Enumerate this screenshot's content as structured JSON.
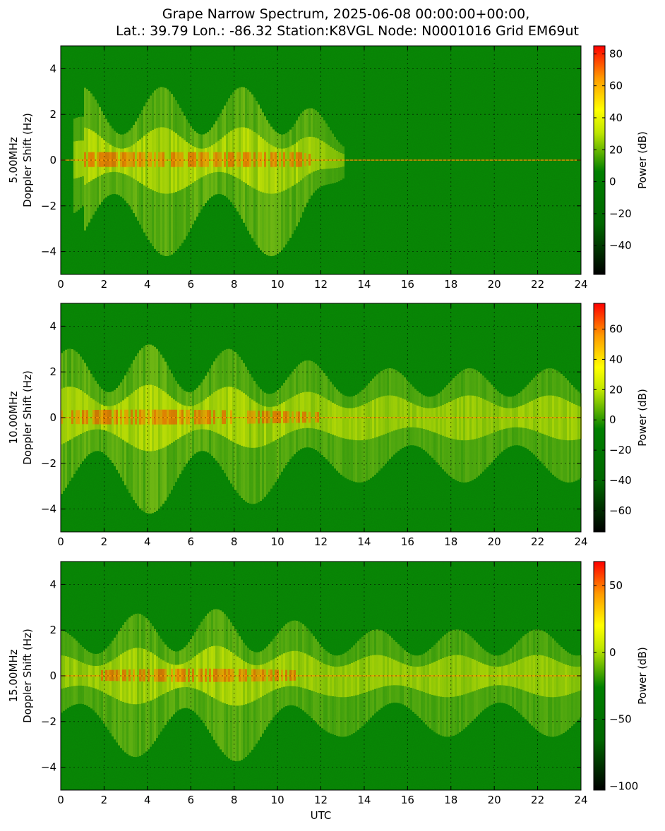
{
  "title_lines": [
    "Grape Narrow Spectrum, 2025-06-08 00:00:00+00:00,",
    "Lat.: 39.79 Lon.: -86.32 Station:K8VGL Node: N0001016 Grid EM69ut"
  ],
  "colors": {
    "colormap": [
      "#000000",
      "#006600",
      "#008000",
      "#bfe600",
      "#ffff00",
      "#ff9900",
      "#ff0000"
    ],
    "axes_frame": "#000000",
    "grid": "#000000"
  },
  "chart_data": [
    {
      "type": "heatmap",
      "band_label": "5.00MHz",
      "ylabel": "5.00MHz\nDoppler Shift (Hz)",
      "ylabel_lines": [
        "5.00MHz",
        "Doppler Shift (Hz)"
      ],
      "xlabel": "",
      "xlim": [
        0,
        24
      ],
      "ylim": [
        -5,
        5
      ],
      "x_ticks": [
        0,
        2,
        4,
        6,
        8,
        10,
        12,
        14,
        16,
        18,
        20,
        22,
        24
      ],
      "y_ticks": [
        -4,
        -2,
        0,
        2,
        4
      ],
      "grid": true,
      "colorbar": {
        "label": "Power (dB)",
        "vmin": -58,
        "vmax": 85,
        "ticks": [
          -40,
          -20,
          0,
          20,
          40,
          60,
          80
        ]
      },
      "signal_active_hours": [
        0.5,
        13
      ],
      "carrier_hz": 0
    },
    {
      "type": "heatmap",
      "band_label": "10.00MHz",
      "ylabel": "10.00MHz\nDoppler Shift (Hz)",
      "ylabel_lines": [
        "10.00MHz",
        "Doppler Shift (Hz)"
      ],
      "xlabel": "",
      "xlim": [
        0,
        24
      ],
      "ylim": [
        -5,
        5
      ],
      "x_ticks": [
        0,
        2,
        4,
        6,
        8,
        10,
        12,
        14,
        16,
        18,
        20,
        22,
        24
      ],
      "y_ticks": [
        -4,
        -2,
        0,
        2,
        4
      ],
      "grid": true,
      "colorbar": {
        "label": "Power (dB)",
        "vmin": -74,
        "vmax": 77,
        "ticks": [
          -60,
          -40,
          -20,
          0,
          20,
          40,
          60
        ]
      },
      "signal_active_hours": [
        0,
        24
      ],
      "carrier_hz": 0
    },
    {
      "type": "heatmap",
      "band_label": "15.00MHz",
      "ylabel": "15.00MHz\nDoppler Shift (Hz)",
      "ylabel_lines": [
        "15.00MHz",
        "Doppler Shift (Hz)"
      ],
      "xlabel": "UTC",
      "xlim": [
        0,
        24
      ],
      "ylim": [
        -5,
        5
      ],
      "x_ticks": [
        0,
        2,
        4,
        6,
        8,
        10,
        12,
        14,
        16,
        18,
        20,
        22,
        24
      ],
      "y_ticks": [
        -4,
        -2,
        0,
        2,
        4
      ],
      "grid": true,
      "colorbar": {
        "label": "Power (dB)",
        "vmin": -103,
        "vmax": 68,
        "ticks": [
          -100,
          -50,
          0,
          50
        ]
      },
      "signal_active_hours": [
        0,
        24
      ],
      "carrier_hz": 0
    }
  ]
}
